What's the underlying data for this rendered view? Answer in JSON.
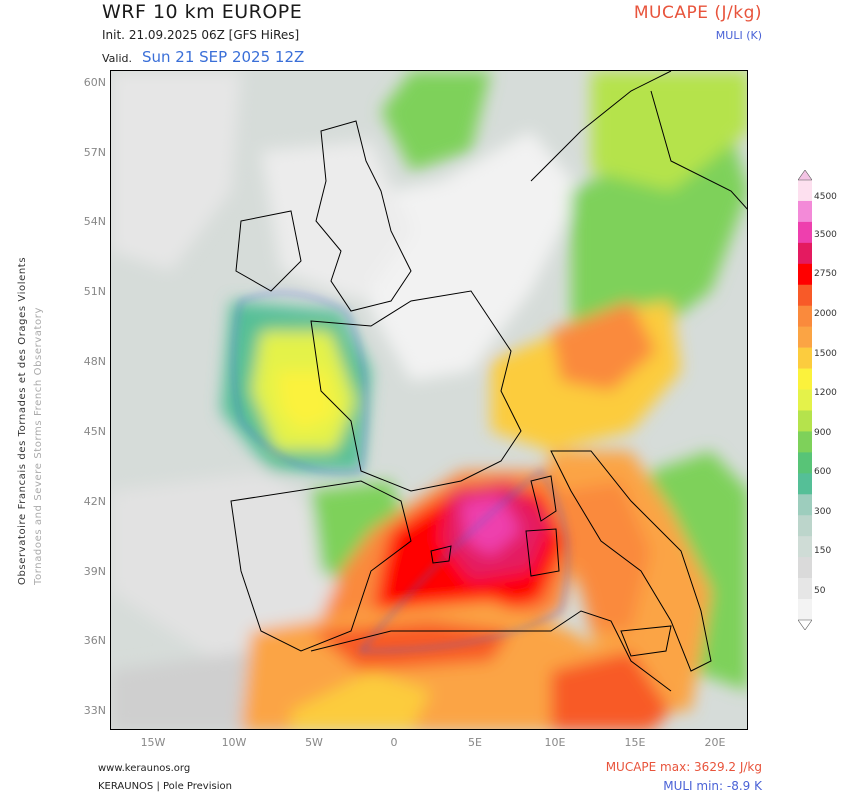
{
  "header": {
    "title": "WRF 10 km EUROPE",
    "init": "Init.  21.09.2025 06Z [GFS HiRes]",
    "valid_label": "Valid.",
    "valid_value": "Sun 21 SEP 2025 12Z",
    "param_title": "MUCAPE (J/kg)",
    "param_sub": "MULI (K)"
  },
  "side": {
    "french": "Observatoire Francais des Tornades et des Orages Violents",
    "english": "Tornadoes and Severe Storms French Observatory"
  },
  "axes": {
    "latitudes": [
      "60N",
      "57N",
      "54N",
      "51N",
      "48N",
      "45N",
      "42N",
      "39N",
      "36N",
      "33N"
    ],
    "longitudes": [
      "15W",
      "10W",
      "5W",
      "0",
      "5E",
      "10E",
      "15E",
      "20E"
    ]
  },
  "colorbar": {
    "labels": [
      "4500",
      "3500",
      "2750",
      "2000",
      "1500",
      "1200",
      "900",
      "600",
      "300",
      "150",
      "50"
    ],
    "colors": [
      "#fde0ef",
      "#f38ad8",
      "#ee3fae",
      "#e41a60",
      "#ff0000",
      "#f85a28",
      "#fa8a3c",
      "#fba444",
      "#fccc3e",
      "#fbf23c",
      "#e4f24a",
      "#b5e34c",
      "#7ed15a",
      "#58c477",
      "#55bf97",
      "#9dcdbd",
      "#bcd5cb",
      "#cfdcd6",
      "#dadada",
      "#e6e6e6",
      "#f3f3f3"
    ]
  },
  "footer": {
    "url": "www.keraunos.org",
    "org": "KERAUNOS | Pole Prevision",
    "mucape_max": "MUCAPE max: 3629.2 J/kg",
    "muli_min": "MULI min: -8.9 K"
  }
}
